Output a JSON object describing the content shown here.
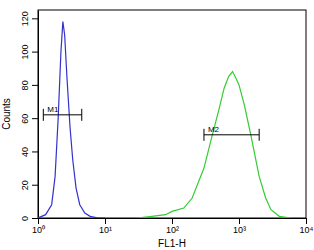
{
  "chart_data": {
    "type": "line",
    "log": "x",
    "x_label": "FL1-H",
    "y_label": "Counts",
    "xlim": [
      1,
      10000
    ],
    "xticks": [
      {
        "value": 1,
        "label": "10⁰"
      },
      {
        "value": 10,
        "label": "10¹"
      },
      {
        "value": 100,
        "label": "10²"
      },
      {
        "value": 1000,
        "label": "10³"
      },
      {
        "value": 10000,
        "label": "10⁴"
      }
    ],
    "ylim": [
      0,
      125
    ],
    "yticks": [
      0,
      20,
      40,
      60,
      80,
      100,
      120
    ],
    "series": [
      {
        "color": "#3333cc",
        "x": [
          1.0,
          1.3,
          1.6,
          1.8,
          2.0,
          2.2,
          2.35,
          2.5,
          2.7,
          3.0,
          3.3,
          3.7,
          4.2,
          5,
          6,
          8,
          10
        ],
        "values": [
          0,
          2,
          8,
          25,
          60,
          100,
          118,
          110,
          85,
          55,
          35,
          18,
          8,
          3,
          1,
          0,
          0
        ]
      },
      {
        "color": "#33cc33",
        "x": [
          30,
          50,
          80,
          100,
          150,
          200,
          300,
          400,
          500,
          600,
          700,
          800,
          900,
          1000,
          1200,
          1500,
          2000,
          2500,
          3000,
          4000,
          6000
        ],
        "values": [
          0,
          1,
          2,
          4,
          6,
          12,
          30,
          50,
          65,
          78,
          85,
          88,
          84,
          80,
          68,
          50,
          25,
          12,
          5,
          1,
          0
        ]
      }
    ],
    "annotations": [
      {
        "text": "M1",
        "x": [
          1.2,
          4.5
        ],
        "y": 62
      },
      {
        "text": "M2",
        "x": [
          300,
          2000
        ],
        "y": 50
      }
    ]
  }
}
